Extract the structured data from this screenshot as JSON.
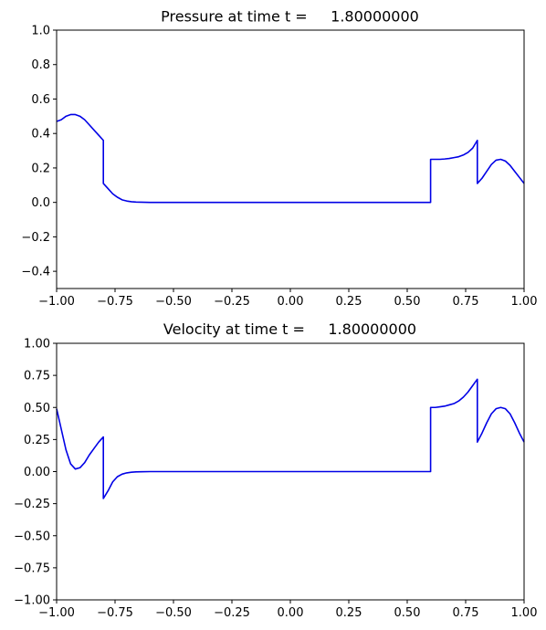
{
  "chart_data": [
    {
      "type": "line",
      "title": "Pressure at time t =     1.80000000",
      "xlabel": "",
      "ylabel": "",
      "xlim": [
        -1.0,
        1.0
      ],
      "ylim": [
        -0.5,
        1.0
      ],
      "xticks": [
        "−1.00",
        "−0.75",
        "−0.50",
        "−0.25",
        "0.00",
        "0.25",
        "0.50",
        "0.75",
        "1.00"
      ],
      "yticks": [
        "−0.4",
        "−0.2",
        "0.0",
        "0.2",
        "0.4",
        "0.6",
        "0.8",
        "1.0"
      ],
      "xtick_values": [
        -1.0,
        -0.75,
        -0.5,
        -0.25,
        0.0,
        0.25,
        0.5,
        0.75,
        1.0
      ],
      "ytick_values": [
        -0.4,
        -0.2,
        0.0,
        0.2,
        0.4,
        0.6,
        0.8,
        1.0
      ],
      "grid": false,
      "color": "#0000e6",
      "series": [
        {
          "x": [
            -1.0,
            -0.98,
            -0.96,
            -0.94,
            -0.92,
            -0.9,
            -0.88,
            -0.86,
            -0.84,
            -0.82,
            -0.8,
            -0.8,
            -0.78,
            -0.76,
            -0.74,
            -0.72,
            -0.7,
            -0.68,
            -0.66,
            -0.64,
            -0.6,
            -0.5,
            -0.25,
            0.0,
            0.25,
            0.5,
            0.6,
            0.6,
            0.62,
            0.64,
            0.66,
            0.68,
            0.7,
            0.72,
            0.74,
            0.76,
            0.78,
            0.8,
            0.8,
            0.82,
            0.84,
            0.86,
            0.88,
            0.9,
            0.92,
            0.94,
            0.96,
            0.98,
            1.0
          ],
          "y": [
            0.47,
            0.48,
            0.5,
            0.51,
            0.51,
            0.5,
            0.48,
            0.45,
            0.42,
            0.39,
            0.36,
            0.11,
            0.08,
            0.05,
            0.03,
            0.015,
            0.008,
            0.004,
            0.002,
            0.001,
            0.0,
            0.0,
            0.0,
            0.0,
            0.0,
            0.0,
            0.0,
            0.25,
            0.25,
            0.25,
            0.252,
            0.255,
            0.26,
            0.265,
            0.275,
            0.29,
            0.315,
            0.36,
            0.11,
            0.14,
            0.18,
            0.22,
            0.245,
            0.25,
            0.24,
            0.215,
            0.18,
            0.145,
            0.11
          ]
        }
      ]
    },
    {
      "type": "line",
      "title": "Velocity at time t =     1.80000000",
      "xlabel": "",
      "ylabel": "",
      "xlim": [
        -1.0,
        1.0
      ],
      "ylim": [
        -1.0,
        1.0
      ],
      "xticks": [
        "−1.00",
        "−0.75",
        "−0.50",
        "−0.25",
        "0.00",
        "0.25",
        "0.50",
        "0.75",
        "1.00"
      ],
      "yticks": [
        "−1.00",
        "−0.75",
        "−0.50",
        "−0.25",
        "0.00",
        "0.25",
        "0.50",
        "0.75",
        "1.00"
      ],
      "xtick_values": [
        -1.0,
        -0.75,
        -0.5,
        -0.25,
        0.0,
        0.25,
        0.5,
        0.75,
        1.0
      ],
      "ytick_values": [
        -1.0,
        -0.75,
        -0.5,
        -0.25,
        0.0,
        0.25,
        0.5,
        0.75,
        1.0
      ],
      "grid": false,
      "color": "#0000e6",
      "series": [
        {
          "x": [
            -1.0,
            -0.98,
            -0.96,
            -0.94,
            -0.92,
            -0.9,
            -0.88,
            -0.86,
            -0.84,
            -0.82,
            -0.8,
            -0.8,
            -0.78,
            -0.76,
            -0.74,
            -0.72,
            -0.7,
            -0.68,
            -0.66,
            -0.64,
            -0.6,
            -0.5,
            -0.25,
            0.0,
            0.25,
            0.5,
            0.6,
            0.6,
            0.62,
            0.64,
            0.66,
            0.68,
            0.7,
            0.72,
            0.74,
            0.76,
            0.78,
            0.8,
            0.8,
            0.82,
            0.84,
            0.86,
            0.88,
            0.9,
            0.92,
            0.94,
            0.96,
            0.98,
            1.0
          ],
          "y": [
            0.49,
            0.33,
            0.17,
            0.06,
            0.02,
            0.03,
            0.07,
            0.13,
            0.18,
            0.23,
            0.27,
            -0.21,
            -0.15,
            -0.08,
            -0.04,
            -0.02,
            -0.01,
            -0.005,
            -0.002,
            -0.001,
            0.0,
            0.0,
            0.0,
            0.0,
            0.0,
            0.0,
            0.0,
            0.5,
            0.5,
            0.505,
            0.51,
            0.52,
            0.53,
            0.55,
            0.58,
            0.62,
            0.67,
            0.72,
            0.23,
            0.3,
            0.38,
            0.45,
            0.49,
            0.5,
            0.49,
            0.45,
            0.38,
            0.3,
            0.23
          ]
        }
      ]
    }
  ]
}
